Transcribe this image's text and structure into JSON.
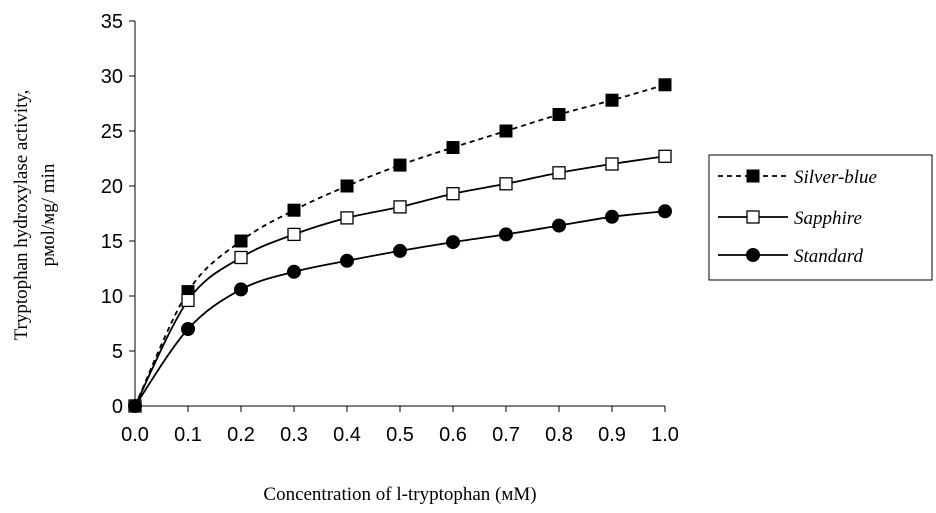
{
  "chart_data": {
    "type": "line",
    "title": "",
    "xlabel": "Concentration of l-tryptophan (мM)",
    "ylabel_line1": "Tryptophan hydroxylase activity,",
    "ylabel_line2": "pмol/мg/ min",
    "x": [
      0.0,
      0.1,
      0.2,
      0.3,
      0.4,
      0.5,
      0.6,
      0.7,
      0.8,
      0.9,
      1.0
    ],
    "xtick_labels": [
      "0.0",
      "0.1",
      "0.2",
      "0.3",
      "0.4",
      "0.5",
      "0.6",
      "0.7",
      "0.8",
      "0.9",
      "1.0"
    ],
    "ylim": [
      0,
      35
    ],
    "ytick_labels": [
      "0",
      "5",
      "10",
      "15",
      "20",
      "25",
      "30",
      "35"
    ],
    "grid": false,
    "legend_position": "right",
    "series": [
      {
        "name": "Silver-blue",
        "marker": "filled-square",
        "line": "dotted",
        "color": "#000000",
        "values": [
          0,
          10.4,
          15.0,
          17.8,
          20.0,
          21.9,
          23.5,
          25.0,
          26.5,
          27.8,
          29.2
        ]
      },
      {
        "name": "Sapphire",
        "marker": "open-square",
        "line": "solid",
        "color": "#000000",
        "values": [
          0,
          9.6,
          13.5,
          15.6,
          17.1,
          18.1,
          19.3,
          20.2,
          21.2,
          22.0,
          22.7
        ]
      },
      {
        "name": "Standard",
        "marker": "filled-circle",
        "line": "solid",
        "color": "#000000",
        "values": [
          0,
          7.0,
          10.6,
          12.2,
          13.2,
          14.1,
          14.9,
          15.6,
          16.4,
          17.2,
          17.7
        ]
      }
    ]
  }
}
